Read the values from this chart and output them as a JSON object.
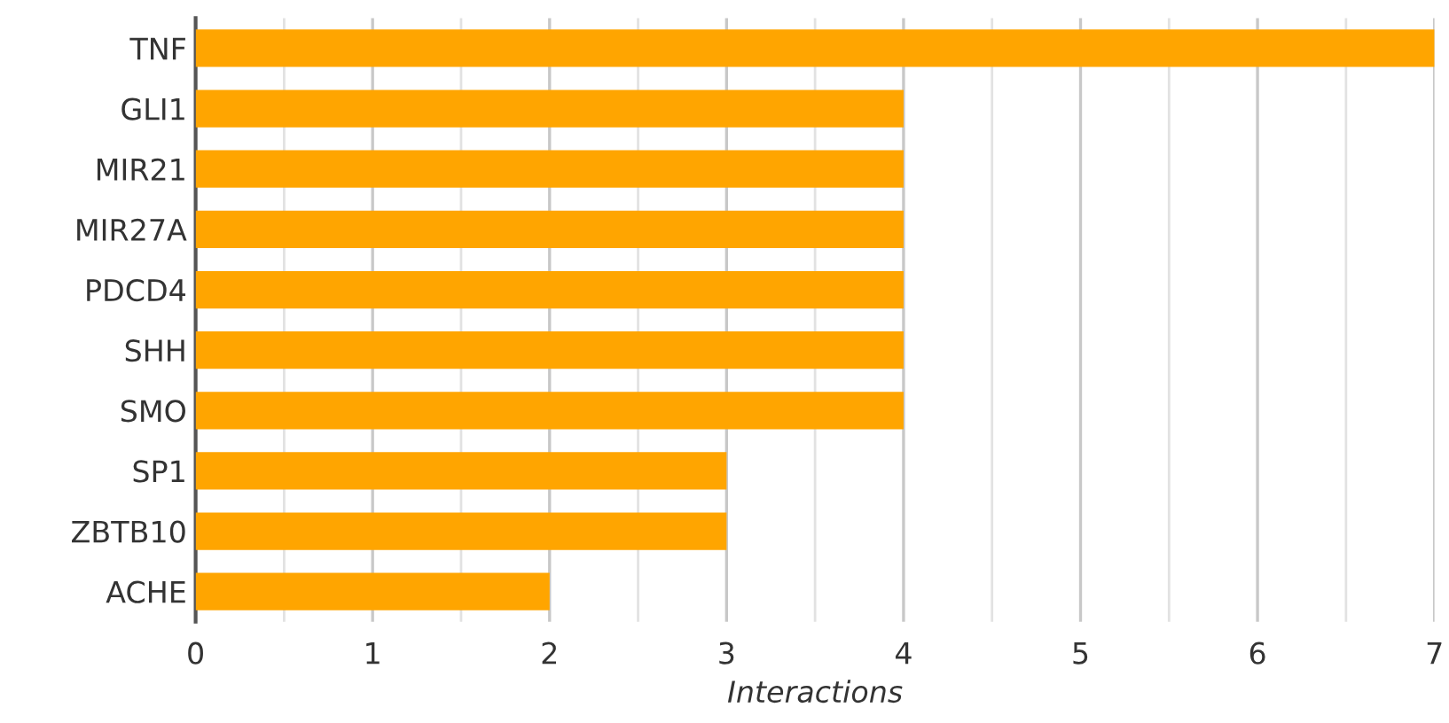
{
  "chart_data": {
    "type": "bar",
    "orientation": "horizontal",
    "xlabel": "Interactions",
    "categories": [
      "TNF",
      "GLI1",
      "MIR21",
      "MIR27A",
      "PDCD4",
      "SHH",
      "SMO",
      "SP1",
      "ZBTB10",
      "ACHE"
    ],
    "values": [
      7,
      4,
      4,
      4,
      4,
      4,
      4,
      3,
      3,
      2
    ],
    "color": "#ffa500",
    "xlim": [
      0,
      7
    ],
    "xticks": [
      0,
      {
        "value": 0.5,
        "label": null
      },
      1,
      {
        "value": 1.5,
        "label": null
      },
      2,
      {
        "value": 2.5,
        "label": null
      },
      3,
      {
        "value": 3.5,
        "label": null
      },
      4,
      {
        "value": 4.5,
        "label": null
      },
      5,
      {
        "value": 5.5,
        "label": null
      },
      6,
      {
        "value": 6.5,
        "label": null
      },
      7
    ],
    "grid": "x",
    "legend": false
  }
}
